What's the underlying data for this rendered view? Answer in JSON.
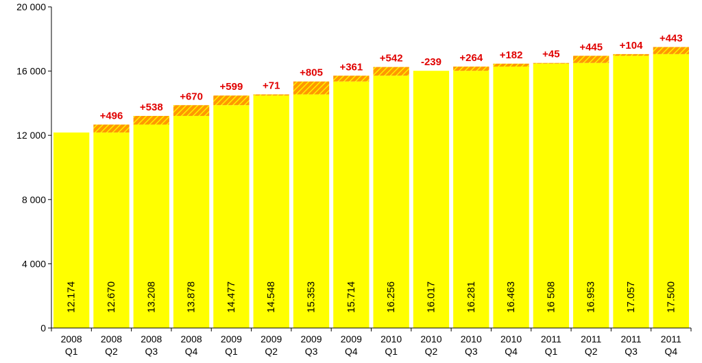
{
  "chart_data": {
    "type": "bar",
    "categories": [
      [
        "2008",
        "Q1"
      ],
      [
        "2008",
        "Q2"
      ],
      [
        "2008",
        "Q3"
      ],
      [
        "2008",
        "Q4"
      ],
      [
        "2009",
        "Q1"
      ],
      [
        "2009",
        "Q2"
      ],
      [
        "2009",
        "Q3"
      ],
      [
        "2009",
        "Q4"
      ],
      [
        "2010",
        "Q1"
      ],
      [
        "2010",
        "Q2"
      ],
      [
        "2010",
        "Q3"
      ],
      [
        "2010",
        "Q4"
      ],
      [
        "2011",
        "Q1"
      ],
      [
        "2011",
        "Q2"
      ],
      [
        "2011",
        "Q3"
      ],
      [
        "2011",
        "Q4"
      ]
    ],
    "values": [
      12174,
      12670,
      13208,
      13878,
      14477,
      14548,
      15353,
      15714,
      16256,
      16017,
      16281,
      16463,
      16508,
      16953,
      17057,
      17500
    ],
    "value_labels": [
      "12.174",
      "12.670",
      "13.208",
      "13.878",
      "14.477",
      "14.548",
      "15.353",
      "15.714",
      "16.256",
      "16.017",
      "16.281",
      "16.463",
      "16 508",
      "16.953",
      "17.057",
      "17.500"
    ],
    "deltas": [
      null,
      496,
      538,
      670,
      599,
      71,
      805,
      361,
      542,
      -239,
      264,
      182,
      45,
      445,
      104,
      443
    ],
    "delta_labels": [
      "",
      "+496",
      "+538",
      "+670",
      "+599",
      "+71",
      "+805",
      "+361",
      "+542",
      "-239",
      "+264",
      "+182",
      "+45",
      "+445",
      "+104",
      "+443"
    ],
    "yticks": [
      0,
      4000,
      8000,
      12000,
      16000,
      20000
    ],
    "ytick_labels": [
      "0",
      "4 000",
      "8 000",
      "12 000",
      "16 000",
      "20 000"
    ],
    "ylim": [
      0,
      20000
    ],
    "grid": false,
    "colors": {
      "bar": "#ffff00",
      "increase_hatch_bg": "#ff9900",
      "increase_hatch_line": "#ffff00",
      "delta_text": "#e00000"
    }
  }
}
